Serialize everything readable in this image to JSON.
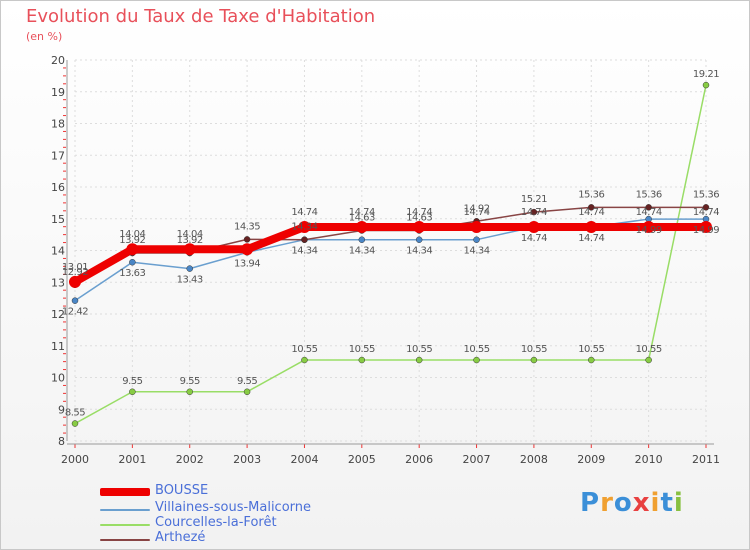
{
  "chart_data": {
    "type": "line",
    "title": "Evolution du Taux de Taxe d'Habitation",
    "ylabel": "(en %)",
    "xlabel": "",
    "x": [
      "2000",
      "2001",
      "2002",
      "2003",
      "2004",
      "2005",
      "2006",
      "2007",
      "2008",
      "2009",
      "2010",
      "2011"
    ],
    "ylim": [
      8,
      20
    ],
    "yticks": [
      "8",
      "9",
      "10",
      "11",
      "12",
      "13",
      "14",
      "15",
      "16",
      "17",
      "18",
      "19",
      "20"
    ],
    "series": [
      {
        "name": "BOUSSE",
        "color": "#ee0000",
        "values": [
          13.01,
          14.04,
          14.04,
          14.04,
          14.74,
          14.74,
          14.74,
          14.74,
          14.74,
          14.74,
          14.74,
          14.74
        ],
        "labels": [
          "13.01",
          "14.04",
          "14.04",
          "",
          "14.74",
          "14.74",
          "14.74",
          "14.74",
          "14.74",
          "14.74",
          "14.74",
          "14.74"
        ]
      },
      {
        "name": "Villaines-sous-Malicorne",
        "color": "#6a9fcf",
        "values": [
          12.42,
          13.63,
          13.43,
          13.94,
          14.34,
          14.34,
          14.34,
          14.34,
          14.74,
          14.74,
          14.99,
          14.99
        ],
        "labels": [
          "12.42",
          "13.63",
          "13.43",
          "13.94",
          "14.34",
          "14.34",
          "14.34",
          "14.34",
          "14.74",
          "14.74",
          "14.99",
          "14.99"
        ]
      },
      {
        "name": "Courcelles-la-Forêt",
        "color": "#99dd66",
        "values": [
          8.55,
          9.55,
          9.55,
          9.55,
          10.55,
          10.55,
          10.55,
          10.55,
          10.55,
          10.55,
          10.55,
          19.21
        ],
        "labels": [
          "8.55",
          "9.55",
          "9.55",
          "9.55",
          "10.55",
          "10.55",
          "10.55",
          "10.55",
          "10.55",
          "10.55",
          "10.55",
          "19.21"
        ]
      },
      {
        "name": "Arthezé",
        "color": "#884444",
        "values": [
          12.92,
          13.92,
          13.92,
          14.35,
          14.34,
          14.63,
          14.63,
          14.92,
          15.21,
          15.36,
          15.36,
          15.36
        ],
        "labels": [
          "12.92",
          "13.92",
          "13.92",
          "14.35",
          "14.34",
          "14.63",
          "14.63",
          "14.92",
          "15.21",
          "15.36",
          "15.36",
          "15.36"
        ]
      }
    ]
  },
  "logo": {
    "text": "Proxiti"
  }
}
